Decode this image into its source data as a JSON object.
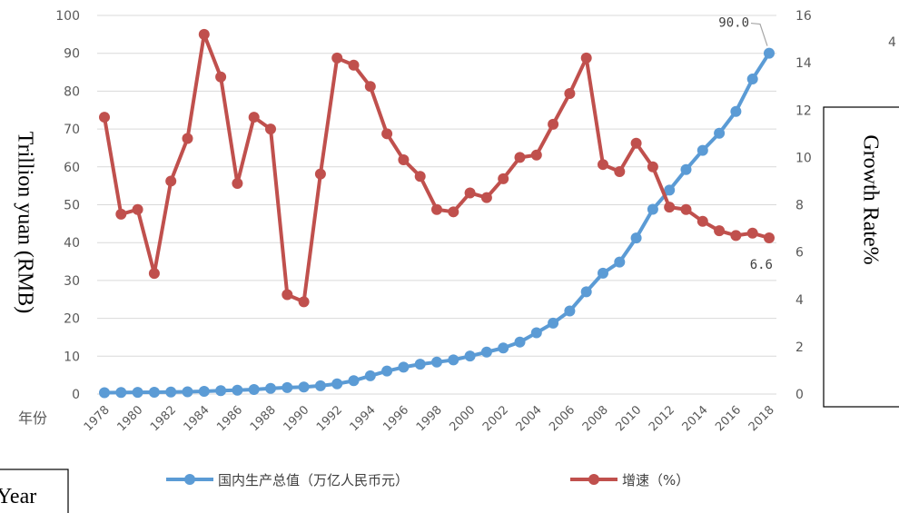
{
  "chart_data": {
    "type": "line",
    "x": [
      1978,
      1979,
      1980,
      1981,
      1982,
      1983,
      1984,
      1985,
      1986,
      1987,
      1988,
      1989,
      1990,
      1991,
      1992,
      1993,
      1994,
      1995,
      1996,
      1997,
      1998,
      1999,
      2000,
      2001,
      2002,
      2003,
      2004,
      2005,
      2006,
      2007,
      2008,
      2009,
      2010,
      2011,
      2012,
      2013,
      2014,
      2015,
      2016,
      2017,
      2018
    ],
    "x_tick_labels": [
      "1978",
      "1980",
      "1982",
      "1984",
      "1986",
      "1988",
      "1990",
      "1992",
      "1994",
      "1996",
      "1998",
      "2000",
      "2002",
      "2004",
      "2006",
      "2008",
      "2010",
      "2012",
      "2014",
      "2016",
      "2018"
    ],
    "x_corner_label": "年份",
    "series": [
      {
        "name": "国内生产总值（万亿人民币元）",
        "axis": "left",
        "color": "#5b9bd5",
        "values": [
          0.37,
          0.41,
          0.46,
          0.49,
          0.54,
          0.6,
          0.72,
          0.9,
          1.03,
          1.21,
          1.5,
          1.7,
          1.87,
          2.18,
          2.69,
          3.53,
          4.82,
          6.08,
          7.1,
          7.89,
          8.44,
          9.01,
          10.03,
          11.09,
          12.17,
          13.74,
          16.18,
          18.73,
          21.94,
          27.02,
          31.92,
          34.85,
          41.21,
          48.79,
          53.86,
          59.3,
          64.36,
          68.89,
          74.64,
          83.2,
          90.03
        ]
      },
      {
        "name": "增速（%）",
        "axis": "right",
        "color": "#c0504d",
        "values": [
          11.7,
          7.6,
          7.8,
          5.1,
          9.0,
          10.8,
          15.2,
          13.4,
          8.9,
          11.7,
          11.2,
          4.2,
          3.9,
          9.3,
          14.2,
          13.9,
          13.0,
          11.0,
          9.9,
          9.2,
          7.8,
          7.7,
          8.5,
          8.3,
          9.1,
          10.0,
          10.1,
          11.4,
          12.7,
          14.2,
          9.7,
          9.4,
          10.6,
          9.6,
          7.9,
          7.8,
          7.3,
          6.9,
          6.7,
          6.8,
          6.6
        ]
      }
    ],
    "annotations": [
      {
        "text": "90.0",
        "series": 0,
        "index": 40
      },
      {
        "text": "6.6",
        "series": 1,
        "index": 40
      }
    ],
    "y_left": {
      "label": "Trillion yuan (RMB)",
      "ylim": [
        0,
        100
      ],
      "ticks": [
        "0",
        "10",
        "20",
        "30",
        "40",
        "50",
        "60",
        "70",
        "80",
        "90",
        "100"
      ]
    },
    "y_right": {
      "label": "Growth Rate%",
      "ylim": [
        0,
        16
      ],
      "ticks": [
        "0",
        "2",
        "4",
        "6",
        "8",
        "10",
        "12",
        "14",
        "16"
      ]
    },
    "x_axis_box_label": "Year",
    "corner_fragment": "4",
    "grid": true,
    "legend_position": "bottom"
  }
}
